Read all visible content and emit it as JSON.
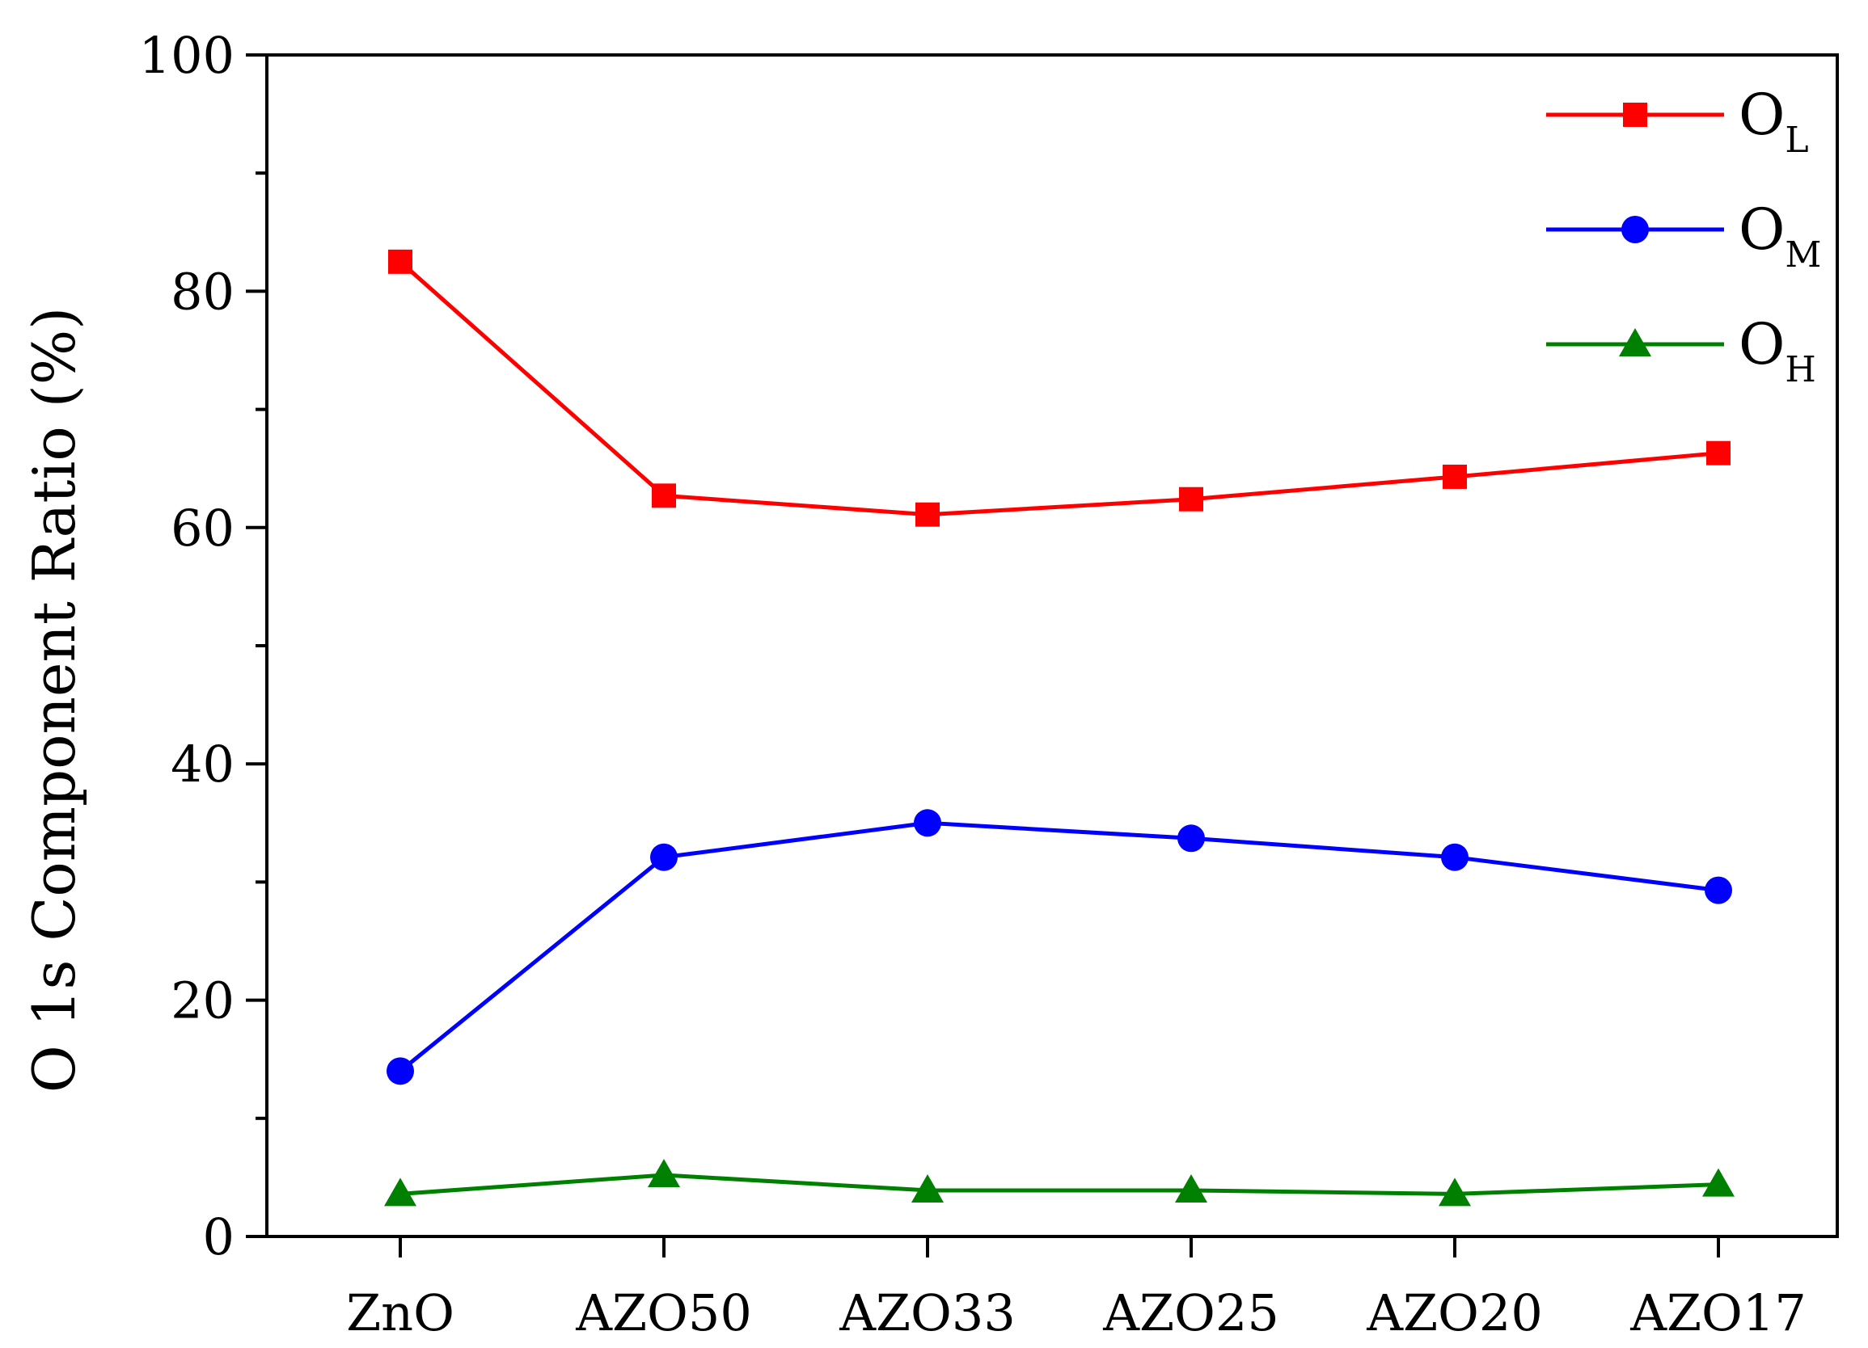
{
  "chart_data": {
    "type": "line",
    "title": "",
    "xlabel": "",
    "ylabel": "O 1s Component Ratio (%)",
    "categories": [
      "ZnO",
      "AZO50",
      "AZO33",
      "AZO25",
      "AZO20",
      "AZO17"
    ],
    "ylim": [
      0,
      100
    ],
    "yticks": [
      "0",
      "20",
      "40",
      "60",
      "80",
      "100"
    ],
    "grid": false,
    "legend_position": "top-right",
    "series": [
      {
        "name_main": "O",
        "name_sub": "L",
        "marker": "square",
        "color": "#ff0000",
        "values": [
          82.5,
          62.7,
          61.1,
          62.4,
          64.3,
          66.3
        ]
      },
      {
        "name_main": "O",
        "name_sub": "M",
        "marker": "circle",
        "color": "#0000ff",
        "values": [
          14.0,
          32.1,
          35.0,
          33.7,
          32.1,
          29.3
        ]
      },
      {
        "name_main": "O",
        "name_sub": "H",
        "marker": "triangle",
        "color": "#008000",
        "values": [
          3.6,
          5.2,
          3.9,
          3.9,
          3.6,
          4.4
        ]
      }
    ]
  }
}
